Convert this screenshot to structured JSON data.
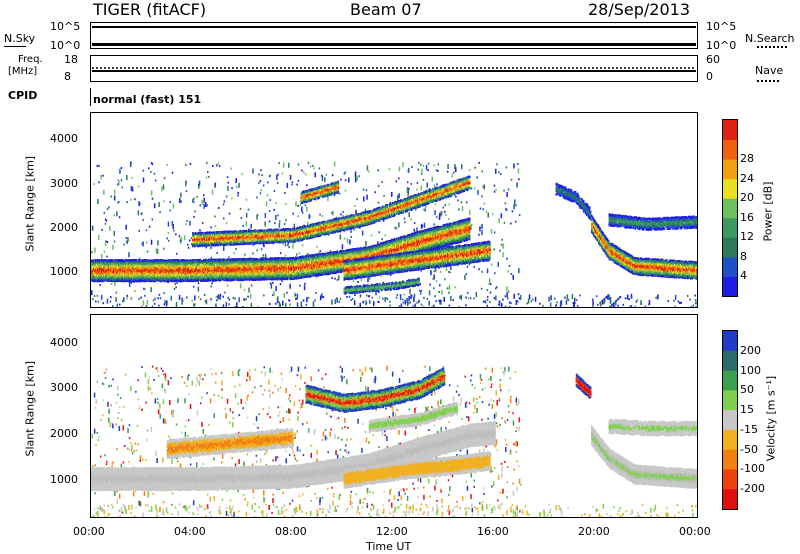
{
  "header": {
    "station": "TIGER (fitACF)",
    "beam": "Beam 07",
    "date": "28/Sep/2013"
  },
  "noise_panel": {
    "left_label": "N.Sky",
    "right_label": "N.Search",
    "left_top_tick": "10^5",
    "left_bottom_tick": "10^0",
    "right_top_tick": "10^5",
    "right_bottom_tick": "10^0"
  },
  "freq_panel": {
    "left_label_line1": "Freq.",
    "left_label_line2": "[MHz]",
    "left_top_tick": "18",
    "left_bottom_tick": "8",
    "right_label": "Nave",
    "right_top_tick": "60",
    "right_bottom_tick": "0"
  },
  "cpid_panel": {
    "label": "CPID",
    "value": "normal (fast) 151"
  },
  "chart_data": [
    {
      "type": "heatmap",
      "name": "power",
      "ylabel": "Slant Range [km]",
      "yticks": [
        "1000",
        "2000",
        "3000",
        "4000"
      ],
      "ylim": [
        200,
        4600
      ],
      "xlim_hours": [
        0,
        24
      ],
      "colorbar": {
        "label": "Power [dB]",
        "ticks": [
          "4",
          "8",
          "12",
          "16",
          "20",
          "24",
          "28"
        ],
        "colors": [
          "#1e1ee6",
          "#2050c8",
          "#2a7a5a",
          "#3a9a60",
          "#6cc060",
          "#e8e020",
          "#f0a010",
          "#f06010",
          "#e02010"
        ]
      }
    },
    {
      "type": "heatmap",
      "name": "velocity",
      "ylabel": "Slant Range [km]",
      "yticks": [
        "1000",
        "2000",
        "3000",
        "4000"
      ],
      "ylim": [
        200,
        4600
      ],
      "xlim_hours": [
        0,
        24
      ],
      "colorbar": {
        "label": "Velocity [m s⁻¹]",
        "ticks": [
          "200",
          "100",
          "50",
          "15",
          "-15",
          "-50",
          "-100",
          "-200"
        ],
        "colors": [
          "#1e3cc8",
          "#2a6a6a",
          "#3aa050",
          "#80d050",
          "#c8c8c8",
          "#f0b020",
          "#f08010",
          "#f04010",
          "#e01010"
        ]
      },
      "xlabel": "Time UT",
      "xticks": [
        "00:00",
        "04:00",
        "08:00",
        "12:00",
        "16:00",
        "20:00",
        "00:00"
      ]
    }
  ],
  "colors": {
    "frame": "#000000",
    "background": "#ffffff"
  }
}
